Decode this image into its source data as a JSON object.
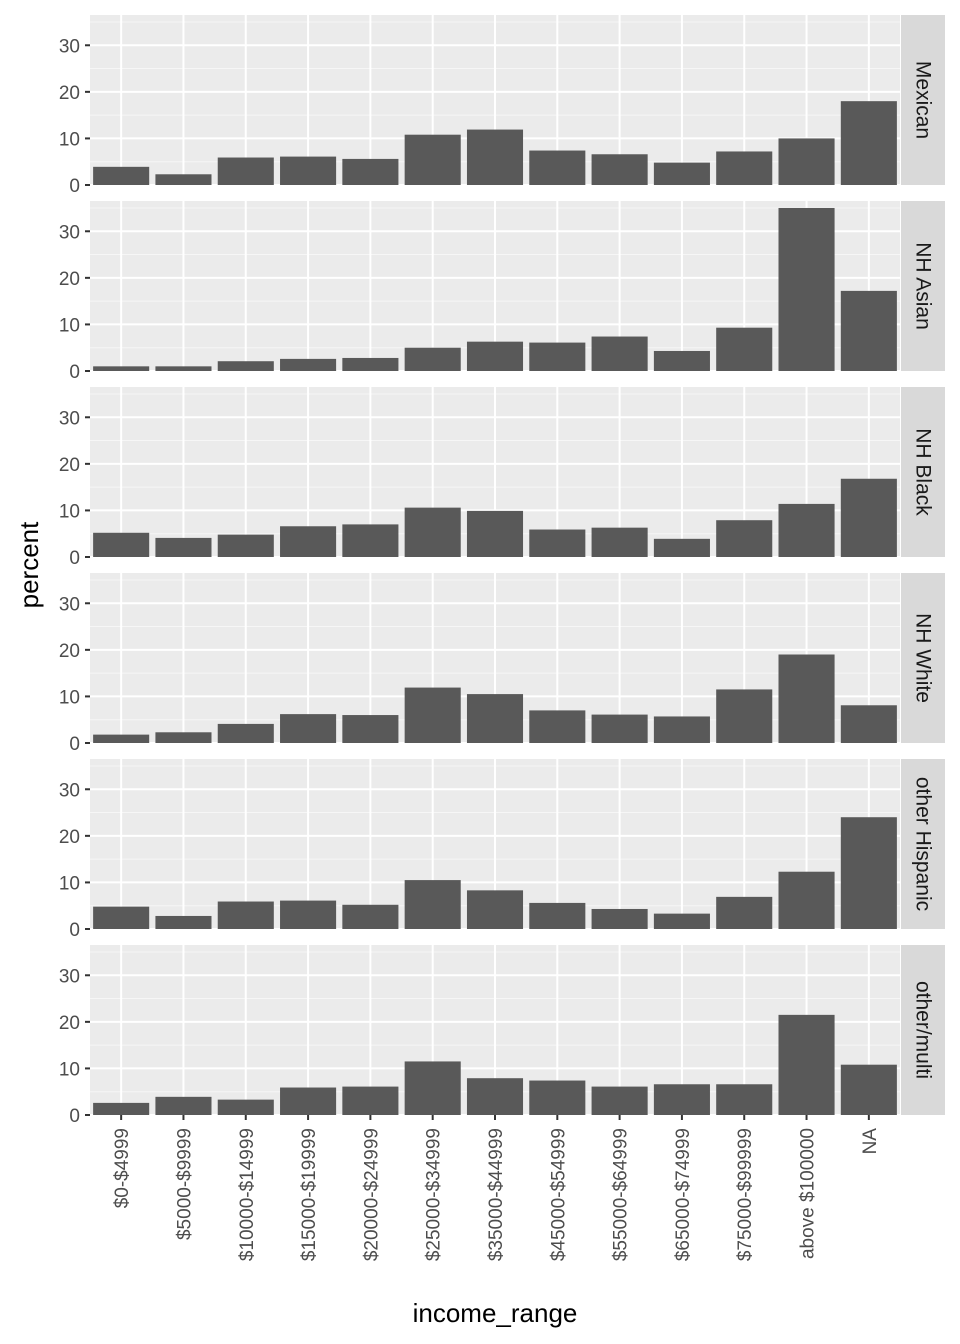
{
  "chart_data": {
    "type": "bar",
    "facet_layout": "rows",
    "categories": [
      "$0-$4999",
      "$5000-$9999",
      "$10000-$14999",
      "$15000-$19999",
      "$20000-$24999",
      "$25000-$34999",
      "$35000-$44999",
      "$45000-$54999",
      "$55000-$64999",
      "$65000-$74999",
      "$75000-$99999",
      "above $100000",
      "NA"
    ],
    "panels": [
      {
        "label": "Mexican",
        "values": [
          3.9,
          2.3,
          5.9,
          6.1,
          5.6,
          10.8,
          11.9,
          7.4,
          6.6,
          4.8,
          7.2,
          10.0,
          18.0
        ]
      },
      {
        "label": "NH Asian",
        "values": [
          1.0,
          1.0,
          2.1,
          2.6,
          2.8,
          5.0,
          6.3,
          6.1,
          7.4,
          4.3,
          9.3,
          35.0,
          17.2
        ]
      },
      {
        "label": "NH Black",
        "values": [
          5.2,
          4.1,
          4.8,
          6.6,
          7.0,
          10.6,
          9.9,
          5.9,
          6.3,
          3.9,
          7.9,
          11.4,
          16.8
        ]
      },
      {
        "label": "NH White",
        "values": [
          1.8,
          2.3,
          4.1,
          6.2,
          6.0,
          11.9,
          10.5,
          7.0,
          6.1,
          5.7,
          11.5,
          19.0,
          8.1
        ]
      },
      {
        "label": "other Hispanic",
        "values": [
          4.8,
          2.8,
          5.9,
          6.1,
          5.2,
          10.5,
          8.3,
          5.6,
          4.3,
          3.3,
          6.9,
          12.3,
          24.0
        ]
      },
      {
        "label": "other/multi",
        "values": [
          2.6,
          3.9,
          3.3,
          5.9,
          6.1,
          11.5,
          7.9,
          7.4,
          6.1,
          6.6,
          6.6,
          21.5,
          10.8
        ]
      }
    ],
    "yticks": [
      0,
      10,
      20,
      30
    ],
    "ylim": [
      0,
      36.5
    ],
    "xlabel": "income_range",
    "ylabel": "percent",
    "grid": true,
    "colors": {
      "bar": "#595959",
      "panel_bg": "#ebebeb",
      "grid_major": "#ffffff",
      "strip_bg": "#d9d9d9",
      "strip_text": "#1a1a1a",
      "tick_text": "#4d4d4d",
      "tick_mark": "#333333"
    }
  }
}
